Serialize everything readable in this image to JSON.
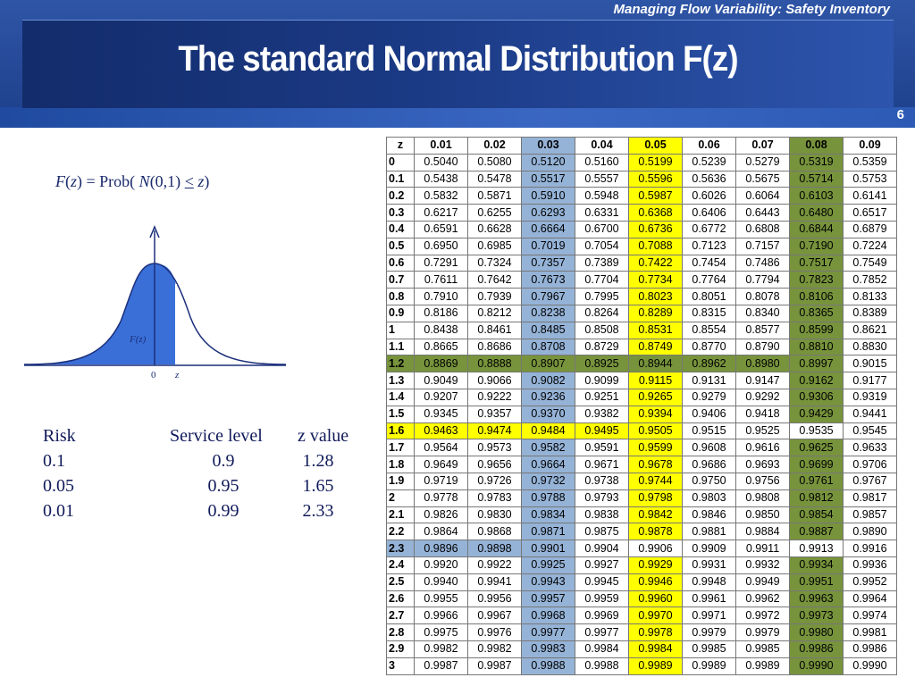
{
  "header": {
    "subtitle": "Managing Flow Variability:  Safety Inventory",
    "title": "The standard Normal Distribution F(z)",
    "page_number": "6"
  },
  "formula": {
    "lhs_f": "F",
    "lhs_z": "z",
    "prob": "Prob(",
    "n": "N",
    "args": "(0,1)",
    "le": "<",
    "z": "z",
    "close": ")"
  },
  "curve": {
    "area_label": "F(z)",
    "zero_label": "0",
    "z_label": "z",
    "fill_color": "#3a6fd8"
  },
  "risk_table": {
    "headers": [
      "Risk",
      "Service level",
      "z value"
    ],
    "rows": [
      [
        "0.1",
        "0.9",
        "1.28"
      ],
      [
        "0.05",
        "0.95",
        "1.65"
      ],
      [
        "0.01",
        "0.99",
        "2.33"
      ]
    ]
  },
  "colors": {
    "yellow": "#ffff00",
    "blue": "#95b3d7",
    "green": "#77933c"
  },
  "z_table": {
    "corner": "z",
    "columns": [
      "0.01",
      "0.02",
      "0.03",
      "0.04",
      "0.05",
      "0.06",
      "0.07",
      "0.08",
      "0.09"
    ],
    "column_highlight": [
      "",
      "",
      "blue",
      "",
      "yellow",
      "",
      "",
      "green",
      ""
    ],
    "row_highlight": {
      "1.2": {
        "color": "green",
        "cols": 8
      },
      "1.6": {
        "color": "yellow",
        "cols": 5
      },
      "2.3": {
        "color": "blue",
        "cols": 3
      }
    },
    "rows": [
      {
        "z": "0",
        "values": [
          "0.5040",
          "0.5080",
          "0.5120",
          "0.5160",
          "0.5199",
          "0.5239",
          "0.5279",
          "0.5319",
          "0.5359"
        ]
      },
      {
        "z": "0.1",
        "values": [
          "0.5438",
          "0.5478",
          "0.5517",
          "0.5557",
          "0.5596",
          "0.5636",
          "0.5675",
          "0.5714",
          "0.5753"
        ]
      },
      {
        "z": "0.2",
        "values": [
          "0.5832",
          "0.5871",
          "0.5910",
          "0.5948",
          "0.5987",
          "0.6026",
          "0.6064",
          "0.6103",
          "0.6141"
        ]
      },
      {
        "z": "0.3",
        "values": [
          "0.6217",
          "0.6255",
          "0.6293",
          "0.6331",
          "0.6368",
          "0.6406",
          "0.6443",
          "0.6480",
          "0.6517"
        ]
      },
      {
        "z": "0.4",
        "values": [
          "0.6591",
          "0.6628",
          "0.6664",
          "0.6700",
          "0.6736",
          "0.6772",
          "0.6808",
          "0.6844",
          "0.6879"
        ]
      },
      {
        "z": "0.5",
        "values": [
          "0.6950",
          "0.6985",
          "0.7019",
          "0.7054",
          "0.7088",
          "0.7123",
          "0.7157",
          "0.7190",
          "0.7224"
        ]
      },
      {
        "z": "0.6",
        "values": [
          "0.7291",
          "0.7324",
          "0.7357",
          "0.7389",
          "0.7422",
          "0.7454",
          "0.7486",
          "0.7517",
          "0.7549"
        ]
      },
      {
        "z": "0.7",
        "values": [
          "0.7611",
          "0.7642",
          "0.7673",
          "0.7704",
          "0.7734",
          "0.7764",
          "0.7794",
          "0.7823",
          "0.7852"
        ]
      },
      {
        "z": "0.8",
        "values": [
          "0.7910",
          "0.7939",
          "0.7967",
          "0.7995",
          "0.8023",
          "0.8051",
          "0.8078",
          "0.8106",
          "0.8133"
        ]
      },
      {
        "z": "0.9",
        "values": [
          "0.8186",
          "0.8212",
          "0.8238",
          "0.8264",
          "0.8289",
          "0.8315",
          "0.8340",
          "0.8365",
          "0.8389"
        ]
      },
      {
        "z": "1",
        "values": [
          "0.8438",
          "0.8461",
          "0.8485",
          "0.8508",
          "0.8531",
          "0.8554",
          "0.8577",
          "0.8599",
          "0.8621"
        ]
      },
      {
        "z": "1.1",
        "values": [
          "0.8665",
          "0.8686",
          "0.8708",
          "0.8729",
          "0.8749",
          "0.8770",
          "0.8790",
          "0.8810",
          "0.8830"
        ]
      },
      {
        "z": "1.2",
        "values": [
          "0.8869",
          "0.8888",
          "0.8907",
          "0.8925",
          "0.8944",
          "0.8962",
          "0.8980",
          "0.8997",
          "0.9015"
        ]
      },
      {
        "z": "1.3",
        "values": [
          "0.9049",
          "0.9066",
          "0.9082",
          "0.9099",
          "0.9115",
          "0.9131",
          "0.9147",
          "0.9162",
          "0.9177"
        ]
      },
      {
        "z": "1.4",
        "values": [
          "0.9207",
          "0.9222",
          "0.9236",
          "0.9251",
          "0.9265",
          "0.9279",
          "0.9292",
          "0.9306",
          "0.9319"
        ]
      },
      {
        "z": "1.5",
        "values": [
          "0.9345",
          "0.9357",
          "0.9370",
          "0.9382",
          "0.9394",
          "0.9406",
          "0.9418",
          "0.9429",
          "0.9441"
        ]
      },
      {
        "z": "1.6",
        "values": [
          "0.9463",
          "0.9474",
          "0.9484",
          "0.9495",
          "0.9505",
          "0.9515",
          "0.9525",
          "0.9535",
          "0.9545"
        ]
      },
      {
        "z": "1.7",
        "values": [
          "0.9564",
          "0.9573",
          "0.9582",
          "0.9591",
          "0.9599",
          "0.9608",
          "0.9616",
          "0.9625",
          "0.9633"
        ]
      },
      {
        "z": "1.8",
        "values": [
          "0.9649",
          "0.9656",
          "0.9664",
          "0.9671",
          "0.9678",
          "0.9686",
          "0.9693",
          "0.9699",
          "0.9706"
        ]
      },
      {
        "z": "1.9",
        "values": [
          "0.9719",
          "0.9726",
          "0.9732",
          "0.9738",
          "0.9744",
          "0.9750",
          "0.9756",
          "0.9761",
          "0.9767"
        ]
      },
      {
        "z": "2",
        "values": [
          "0.9778",
          "0.9783",
          "0.9788",
          "0.9793",
          "0.9798",
          "0.9803",
          "0.9808",
          "0.9812",
          "0.9817"
        ]
      },
      {
        "z": "2.1",
        "values": [
          "0.9826",
          "0.9830",
          "0.9834",
          "0.9838",
          "0.9842",
          "0.9846",
          "0.9850",
          "0.9854",
          "0.9857"
        ]
      },
      {
        "z": "2.2",
        "values": [
          "0.9864",
          "0.9868",
          "0.9871",
          "0.9875",
          "0.9878",
          "0.9881",
          "0.9884",
          "0.9887",
          "0.9890"
        ]
      },
      {
        "z": "2.3",
        "values": [
          "0.9896",
          "0.9898",
          "0.9901",
          "0.9904",
          "0.9906",
          "0.9909",
          "0.9911",
          "0.9913",
          "0.9916"
        ]
      },
      {
        "z": "2.4",
        "values": [
          "0.9920",
          "0.9922",
          "0.9925",
          "0.9927",
          "0.9929",
          "0.9931",
          "0.9932",
          "0.9934",
          "0.9936"
        ]
      },
      {
        "z": "2.5",
        "values": [
          "0.9940",
          "0.9941",
          "0.9943",
          "0.9945",
          "0.9946",
          "0.9948",
          "0.9949",
          "0.9951",
          "0.9952"
        ]
      },
      {
        "z": "2.6",
        "values": [
          "0.9955",
          "0.9956",
          "0.9957",
          "0.9959",
          "0.9960",
          "0.9961",
          "0.9962",
          "0.9963",
          "0.9964"
        ]
      },
      {
        "z": "2.7",
        "values": [
          "0.9966",
          "0.9967",
          "0.9968",
          "0.9969",
          "0.9970",
          "0.9971",
          "0.9972",
          "0.9973",
          "0.9974"
        ]
      },
      {
        "z": "2.8",
        "values": [
          "0.9975",
          "0.9976",
          "0.9977",
          "0.9977",
          "0.9978",
          "0.9979",
          "0.9979",
          "0.9980",
          "0.9981"
        ]
      },
      {
        "z": "2.9",
        "values": [
          "0.9982",
          "0.9982",
          "0.9983",
          "0.9984",
          "0.9984",
          "0.9985",
          "0.9985",
          "0.9986",
          "0.9986"
        ]
      },
      {
        "z": "3",
        "values": [
          "0.9987",
          "0.9987",
          "0.9988",
          "0.9988",
          "0.9989",
          "0.9989",
          "0.9989",
          "0.9990",
          "0.9990"
        ]
      }
    ]
  }
}
